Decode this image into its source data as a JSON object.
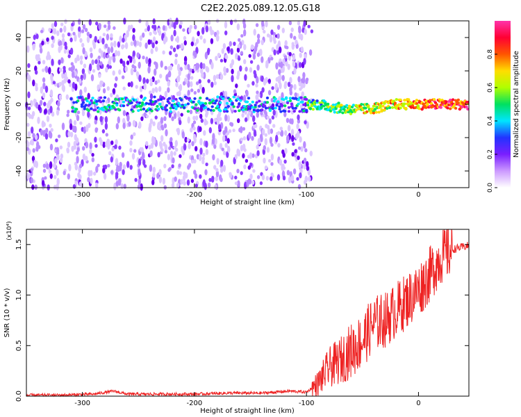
{
  "title": "C2E2.2025.089.12.05.G18",
  "chart_data": [
    {
      "type": "heatmap",
      "name": "spectrogram",
      "xlabel": "Height of straight line (km)",
      "ylabel": "Frequency (Hz)",
      "xlim": [
        -350,
        45
      ],
      "ylim": [
        -50,
        50
      ],
      "xticks": [
        -300,
        -200,
        -100,
        0
      ],
      "xtick_labels": [
        "-300",
        "-200",
        "-100",
        "0"
      ],
      "yticks": [
        40,
        20,
        0,
        -20,
        -40
      ],
      "ytick_labels": [
        "40",
        "20",
        "0",
        "-20",
        "-40"
      ],
      "colorbar": {
        "label": "Normalized spectral amplitude",
        "range": [
          0,
          1
        ],
        "ticks": [
          0.0,
          0.2,
          0.4,
          0.6,
          0.8
        ],
        "tick_labels": [
          "0.0",
          "0.2",
          "0.4",
          "0.6",
          "0.8"
        ],
        "colormap": [
          "#ffffff",
          "#cc99ff",
          "#7a1fff",
          "#2233ff",
          "#00e5ff",
          "#00e060",
          "#b0ff00",
          "#ffdd00",
          "#ff5500",
          "#ff0033",
          "#ff33aa"
        ]
      },
      "features": {
        "noise_band_x": [
          -350,
          -100
        ],
        "signal_band_center_hz": 0,
        "signal_band_halfwidth_hz": 3
      }
    },
    {
      "type": "line",
      "name": "snr",
      "xlabel": "Height of straight line (km)",
      "ylabel": "SNR (10 * v/v)",
      "scale_note": "(x10⁴)",
      "xlim": [
        -350,
        45
      ],
      "ylim": [
        0,
        1.65
      ],
      "xticks": [
        -300,
        -200,
        -100,
        0
      ],
      "xtick_labels": [
        "-300",
        "-200",
        "-100",
        "0"
      ],
      "yticks": [
        0.0,
        0.5,
        1.0,
        1.5
      ],
      "ytick_labels": [
        "0.0",
        "0.5",
        "1.0",
        "1.5"
      ],
      "color": "#ee2222",
      "x": [
        -350,
        -320,
        -290,
        -272,
        -260,
        -230,
        -200,
        -170,
        -140,
        -115,
        -100,
        -90,
        -80,
        -70,
        -60,
        -50,
        -40,
        -30,
        -20,
        -10,
        0,
        10,
        20,
        30,
        45
      ],
      "y": [
        0.01,
        0.01,
        0.02,
        0.05,
        0.02,
        0.02,
        0.02,
        0.03,
        0.03,
        0.05,
        0.04,
        0.12,
        0.28,
        0.35,
        0.45,
        0.55,
        0.72,
        0.75,
        0.85,
        0.95,
        1.05,
        1.2,
        1.38,
        1.45,
        1.49
      ]
    }
  ]
}
